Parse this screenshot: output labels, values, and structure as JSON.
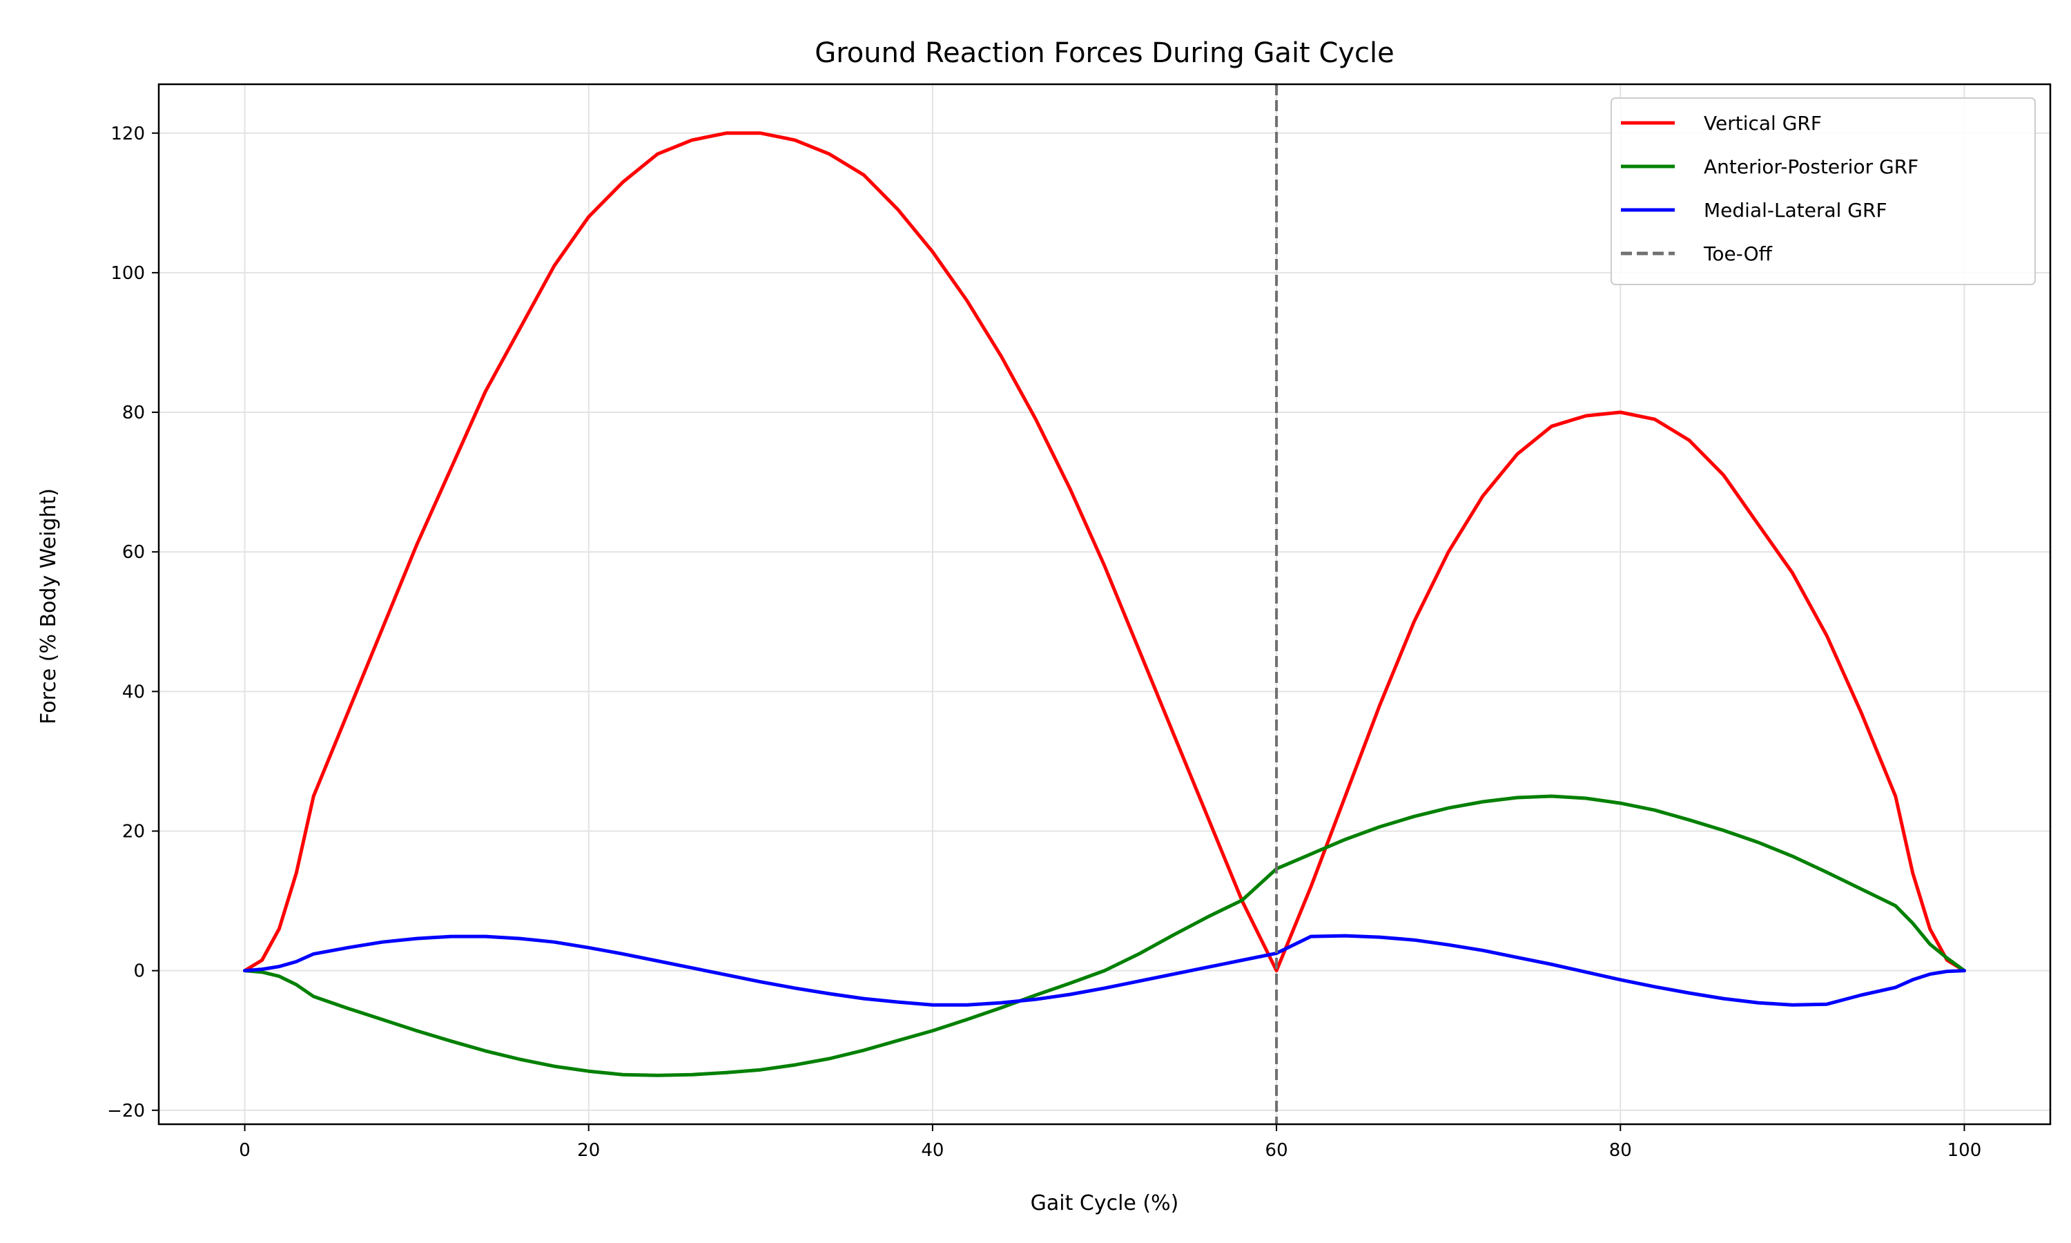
{
  "chart_data": {
    "type": "line",
    "title": "Ground Reaction Forces During Gait Cycle",
    "xlabel": "Gait Cycle (%)",
    "ylabel": "Force (% Body Weight)",
    "xlim": [
      -5,
      105
    ],
    "ylim": [
      -22,
      127
    ],
    "xticks": [
      0,
      20,
      40,
      60,
      80,
      100
    ],
    "yticks": [
      -20,
      0,
      20,
      40,
      60,
      80,
      100,
      120
    ],
    "xtick_labels": [
      "0",
      "20",
      "40",
      "60",
      "80",
      "100"
    ],
    "ytick_labels": [
      "−20",
      "0",
      "20",
      "40",
      "60",
      "80",
      "100",
      "120"
    ],
    "grid": true,
    "legend_position": "top-right",
    "series": [
      {
        "name": "Vertical GRF",
        "color": "#ff0000",
        "x": [
          0,
          1,
          2,
          3,
          4,
          6,
          8,
          10,
          12,
          14,
          16,
          18,
          20,
          22,
          24,
          26,
          28,
          30,
          32,
          34,
          36,
          38,
          40,
          42,
          44,
          46,
          48,
          50,
          52,
          54,
          56,
          58,
          60,
          62,
          64,
          66,
          68,
          70,
          72,
          74,
          76,
          78,
          80,
          82,
          84,
          86,
          88,
          90,
          92,
          94,
          96,
          97,
          98,
          99,
          100
        ],
        "y": [
          0,
          1.5,
          6,
          14,
          25,
          37,
          49,
          61,
          72,
          83,
          92,
          101,
          108,
          113,
          117,
          119,
          120,
          120,
          119,
          117,
          114,
          109,
          103,
          96,
          88,
          79,
          69,
          58,
          46,
          34,
          22,
          10,
          0,
          12,
          25,
          38,
          50,
          60,
          68,
          74,
          78,
          79.5,
          80,
          79,
          76,
          71,
          64,
          57,
          48,
          37,
          25,
          14,
          6,
          1.5,
          0
        ]
      },
      {
        "name": "Anterior-Posterior GRF",
        "color": "#008000",
        "x": [
          0,
          1,
          2,
          3,
          4,
          6,
          8,
          10,
          12,
          14,
          16,
          18,
          20,
          22,
          24,
          26,
          28,
          30,
          32,
          34,
          36,
          38,
          40,
          42,
          44,
          46,
          48,
          50,
          52,
          54,
          56,
          58,
          60,
          62,
          64,
          66,
          68,
          70,
          72,
          74,
          76,
          78,
          80,
          82,
          84,
          86,
          88,
          90,
          92,
          94,
          96,
          97,
          98,
          99,
          100
        ],
        "y": [
          0,
          -0.2,
          -0.8,
          -2,
          -3.7,
          -5.4,
          -7,
          -8.6,
          -10.1,
          -11.5,
          -12.7,
          -13.7,
          -14.4,
          -14.9,
          -15,
          -14.9,
          -14.6,
          -14.2,
          -13.5,
          -12.6,
          -11.4,
          -10,
          -8.6,
          -7,
          -5.3,
          -3.5,
          -1.8,
          0,
          2.4,
          5.1,
          7.7,
          10.1,
          14.6,
          16.7,
          18.8,
          20.6,
          22.1,
          23.3,
          24.2,
          24.8,
          25,
          24.7,
          24,
          23,
          21.6,
          20.1,
          18.4,
          16.4,
          14.1,
          11.7,
          9.3,
          6.8,
          3.8,
          1.8,
          0
        ]
      },
      {
        "name": "Medial-Lateral GRF",
        "color": "#0000ff",
        "x": [
          0,
          1,
          2,
          3,
          4,
          6,
          8,
          10,
          12,
          14,
          16,
          18,
          20,
          22,
          24,
          26,
          28,
          30,
          32,
          34,
          36,
          38,
          40,
          42,
          44,
          46,
          48,
          50,
          52,
          54,
          56,
          58,
          60,
          62,
          64,
          66,
          68,
          70,
          72,
          74,
          76,
          78,
          80,
          82,
          84,
          86,
          88,
          90,
          92,
          94,
          96,
          97,
          98,
          99,
          100
        ],
        "y": [
          0,
          0.2,
          0.6,
          1.3,
          2.4,
          3.3,
          4.1,
          4.6,
          4.9,
          4.9,
          4.6,
          4.1,
          3.3,
          2.4,
          1.4,
          0.4,
          -0.6,
          -1.6,
          -2.5,
          -3.3,
          -4,
          -4.5,
          -4.9,
          -4.9,
          -4.6,
          -4.1,
          -3.4,
          -2.5,
          -1.5,
          -0.5,
          0.5,
          1.5,
          2.5,
          4.9,
          5,
          4.8,
          4.4,
          3.7,
          2.9,
          1.9,
          0.9,
          -0.2,
          -1.3,
          -2.3,
          -3.2,
          -4,
          -4.6,
          -4.9,
          -4.8,
          -3.5,
          -2.4,
          -1.3,
          -0.5,
          -0.1,
          0
        ]
      }
    ],
    "annotations": [
      {
        "name": "Toe-Off",
        "type": "vline",
        "x": 60,
        "color": "#707070",
        "style": "dashed"
      }
    ]
  }
}
